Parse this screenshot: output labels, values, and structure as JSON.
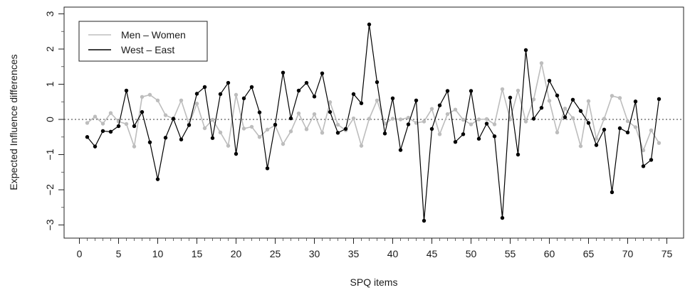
{
  "chart_data": {
    "type": "line",
    "title": "",
    "xlabel": "SPQ items",
    "ylabel": "Expected Influence differences",
    "xlim": [
      0,
      76
    ],
    "ylim": [
      -3.3,
      3.2
    ],
    "xticks": [
      0,
      5,
      10,
      15,
      20,
      25,
      30,
      35,
      40,
      45,
      50,
      55,
      60,
      65,
      70,
      75
    ],
    "yticks": [
      -3,
      -2,
      -1,
      0,
      1,
      2,
      3
    ],
    "reference_line": 0,
    "grid": false,
    "legend_position": "top-left",
    "x": [
      1,
      2,
      3,
      4,
      5,
      6,
      7,
      8,
      9,
      10,
      11,
      12,
      13,
      14,
      15,
      16,
      17,
      18,
      19,
      20,
      21,
      22,
      23,
      24,
      25,
      26,
      27,
      28,
      29,
      30,
      31,
      32,
      33,
      34,
      35,
      36,
      37,
      38,
      39,
      40,
      41,
      42,
      43,
      44,
      45,
      46,
      47,
      48,
      49,
      50,
      51,
      52,
      53,
      54,
      55,
      56,
      57,
      58,
      59,
      60,
      61,
      62,
      63,
      64,
      65,
      66,
      67,
      68,
      69,
      70,
      71,
      72,
      73,
      74
    ],
    "series": [
      {
        "name": "Men – Women",
        "color": "#bdbdbd",
        "values": [
          -0.1,
          0.08,
          -0.12,
          0.18,
          -0.06,
          -0.13,
          -0.77,
          0.64,
          0.7,
          0.54,
          0.12,
          0.02,
          0.54,
          -0.14,
          0.45,
          -0.25,
          -0.01,
          -0.37,
          -0.75,
          0.7,
          -0.26,
          -0.21,
          -0.5,
          -0.29,
          -0.17,
          -0.7,
          -0.34,
          0.17,
          -0.28,
          0.15,
          -0.38,
          0.49,
          -0.15,
          -0.31,
          0.03,
          -0.75,
          0.02,
          0.54,
          -0.12,
          0.02,
          0.0,
          0.05,
          -0.1,
          -0.06,
          0.3,
          -0.42,
          0.15,
          0.28,
          -0.01,
          -0.14,
          0.0,
          0.01,
          -0.14,
          0.86,
          0.0,
          0.82,
          -0.06,
          0.57,
          1.6,
          0.53,
          -0.37,
          0.31,
          0.04,
          -0.76,
          0.52,
          -0.55,
          0.02,
          0.67,
          0.61,
          -0.05,
          -0.22,
          -0.88,
          -0.31,
          -0.67
        ]
      },
      {
        "name": "West – East",
        "color": "#000000",
        "values": [
          -0.5,
          -0.77,
          -0.33,
          -0.35,
          -0.19,
          0.82,
          -0.19,
          0.21,
          -0.65,
          -1.7,
          -0.52,
          0.02,
          -0.57,
          -0.16,
          0.73,
          0.92,
          -0.53,
          0.72,
          1.04,
          -0.98,
          0.6,
          0.92,
          0.2,
          -1.39,
          -0.15,
          1.33,
          0.03,
          0.82,
          1.04,
          0.65,
          1.31,
          0.21,
          -0.38,
          -0.27,
          0.72,
          0.46,
          2.7,
          1.06,
          -0.4,
          0.6,
          -0.87,
          -0.14,
          0.54,
          -2.88,
          -0.27,
          0.4,
          0.81,
          -0.64,
          -0.42,
          0.81,
          -0.55,
          -0.12,
          -0.48,
          -2.8,
          0.62,
          -1.0,
          1.97,
          0.02,
          0.33,
          1.1,
          0.68,
          0.06,
          0.56,
          0.24,
          -0.1,
          -0.73,
          -0.29,
          -2.07,
          -0.25,
          -0.37,
          0.51,
          -1.33,
          -1.15,
          0.58
        ]
      }
    ]
  }
}
